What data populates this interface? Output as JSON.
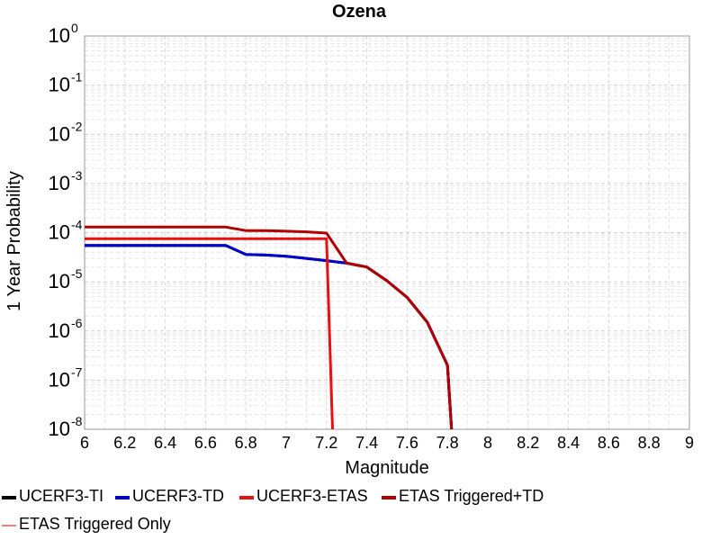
{
  "chart_data": {
    "type": "line",
    "title": "Ozena",
    "xlabel": "Magnitude",
    "ylabel": "1 Year Probability",
    "y_scale": "log",
    "xlim": [
      6,
      9
    ],
    "ylim": [
      1e-08,
      1
    ],
    "grid": true,
    "legend_placement": "bottom",
    "x_ticks": [
      "6",
      "6.2",
      "6.4",
      "6.6",
      "6.8",
      "7",
      "7.2",
      "7.4",
      "7.6",
      "7.8",
      "8",
      "8.2",
      "8.4",
      "8.6",
      "8.8",
      "9"
    ],
    "y_ticks": [
      {
        "base": "10",
        "exp": "0",
        "value": 1
      },
      {
        "base": "10",
        "exp": "-1",
        "value": 0.1
      },
      {
        "base": "10",
        "exp": "-2",
        "value": 0.01
      },
      {
        "base": "10",
        "exp": "-3",
        "value": 0.001
      },
      {
        "base": "10",
        "exp": "-4",
        "value": 0.0001
      },
      {
        "base": "10",
        "exp": "-5",
        "value": 1e-05
      },
      {
        "base": "10",
        "exp": "-6",
        "value": 1e-06
      },
      {
        "base": "10",
        "exp": "-7",
        "value": 1e-07
      },
      {
        "base": "10",
        "exp": "-8",
        "value": 1e-08
      }
    ],
    "series": [
      {
        "name": "UCERF3-TI",
        "color": "#000000",
        "x": [
          6.0,
          6.7,
          6.8,
          6.9,
          7.0,
          7.1,
          7.2,
          7.3,
          7.4,
          7.5,
          7.6,
          7.7,
          7.8,
          7.82
        ],
        "y": [
          5.5e-05,
          5.5e-05,
          3.6e-05,
          3.5e-05,
          3.3e-05,
          3e-05,
          2.7e-05,
          2.4e-05,
          2e-05,
          1.05e-05,
          4.8e-06,
          1.5e-06,
          2e-07,
          1e-08
        ]
      },
      {
        "name": "UCERF3-TD",
        "color": "#0000cc",
        "x": [
          6.0,
          6.7,
          6.8,
          6.9,
          7.0,
          7.1,
          7.2,
          7.3,
          7.4,
          7.5,
          7.6,
          7.7,
          7.8,
          7.82
        ],
        "y": [
          5.5e-05,
          5.5e-05,
          3.6e-05,
          3.5e-05,
          3.3e-05,
          3e-05,
          2.7e-05,
          2.4e-05,
          2e-05,
          1.05e-05,
          4.8e-06,
          1.5e-06,
          2e-07,
          1e-08
        ]
      },
      {
        "name": "UCERF3-ETAS",
        "color": "#e81010",
        "x": [
          6.0,
          7.2,
          7.23
        ],
        "y": [
          7.5e-05,
          7.5e-05,
          1e-08
        ]
      },
      {
        "name": "ETAS Triggered+TD",
        "color": "#b00000",
        "x": [
          6.0,
          6.7,
          6.8,
          6.9,
          7.0,
          7.1,
          7.2,
          7.3,
          7.4,
          7.5,
          7.6,
          7.7,
          7.8,
          7.82
        ],
        "y": [
          0.00013,
          0.00013,
          0.00011,
          0.00011,
          0.000107,
          0.000104,
          9.8e-05,
          2.4e-05,
          2e-05,
          1.05e-05,
          4.8e-06,
          1.5e-06,
          2e-07,
          1e-08
        ]
      },
      {
        "name": "ETAS Triggered Only",
        "color": "#f08080",
        "x": [],
        "y": []
      }
    ]
  }
}
